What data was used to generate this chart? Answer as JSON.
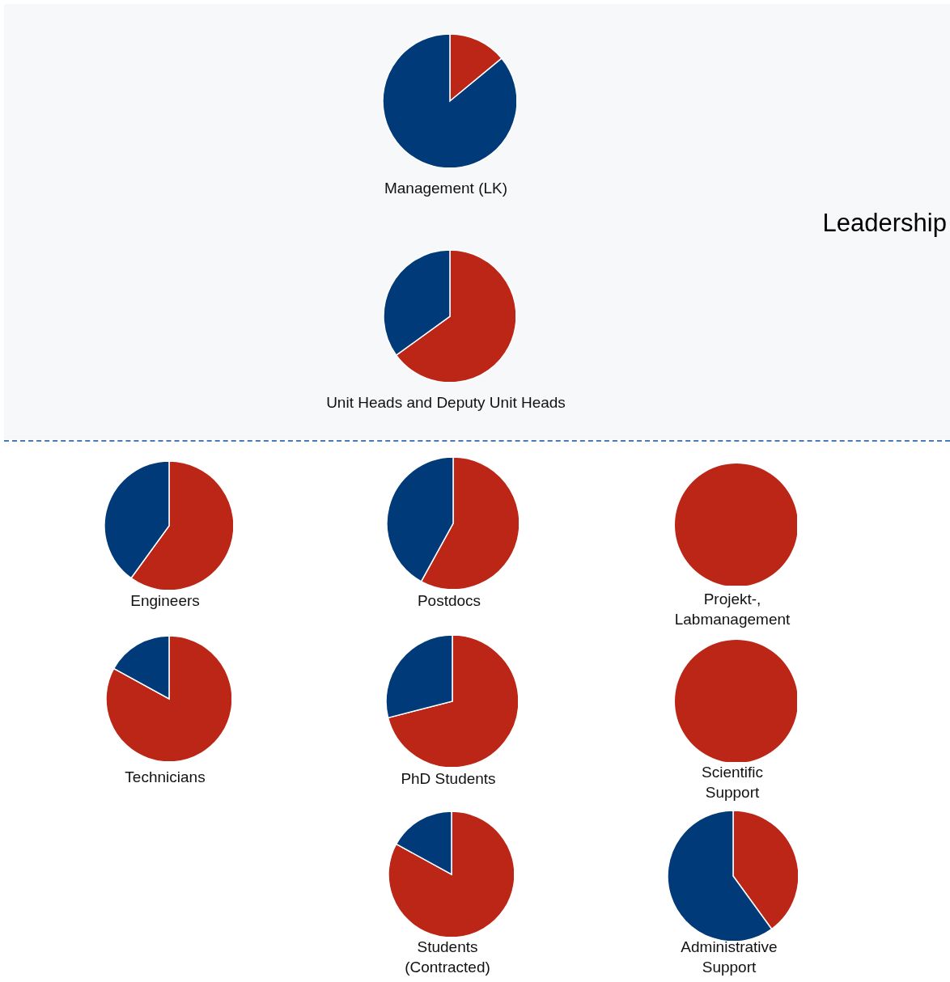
{
  "chart_data": [
    {
      "type": "pie",
      "title": "Management (LK)",
      "categories": [
        null,
        null
      ],
      "values": [
        14,
        86
      ],
      "colors": [
        "#bc2616",
        "#003a78"
      ],
      "annotations": [
        "Leadership"
      ]
    },
    {
      "type": "pie",
      "title": "Unit Heads and Deputy Unit Heads",
      "categories": [
        null,
        null
      ],
      "values": [
        65,
        35
      ],
      "colors": [
        "#bc2616",
        "#003a78"
      ]
    },
    {
      "type": "pie",
      "title": "Engineers",
      "categories": [
        null,
        null
      ],
      "values": [
        60,
        40
      ],
      "colors": [
        "#bc2616",
        "#003a78"
      ]
    },
    {
      "type": "pie",
      "title": "Postdocs",
      "categories": [
        null,
        null
      ],
      "values": [
        58,
        42
      ],
      "colors": [
        "#bc2616",
        "#003a78"
      ]
    },
    {
      "type": "pie",
      "title": "Projekt-, Labmanagement",
      "categories": [
        null,
        null
      ],
      "values": [
        100,
        0
      ],
      "colors": [
        "#bc2616",
        "#003a78"
      ]
    },
    {
      "type": "pie",
      "title": "Technicians",
      "categories": [
        null,
        null
      ],
      "values": [
        83,
        17
      ],
      "colors": [
        "#bc2616",
        "#003a78"
      ]
    },
    {
      "type": "pie",
      "title": "PhD Students",
      "categories": [
        null,
        null
      ],
      "values": [
        71,
        29
      ],
      "colors": [
        "#bc2616",
        "#003a78"
      ]
    },
    {
      "type": "pie",
      "title": "Scientific Support",
      "categories": [
        null,
        null
      ],
      "values": [
        100,
        0
      ],
      "colors": [
        "#bc2616",
        "#003a78"
      ]
    },
    {
      "type": "pie",
      "title": "Students (Contracted)",
      "categories": [
        null,
        null
      ],
      "values": [
        83,
        17
      ],
      "colors": [
        "#bc2616",
        "#003a78"
      ]
    },
    {
      "type": "pie",
      "title": "Administrative Support",
      "categories": [
        null,
        null
      ],
      "values": [
        40,
        60
      ],
      "colors": [
        "#bc2616",
        "#003a78"
      ]
    }
  ]
}
